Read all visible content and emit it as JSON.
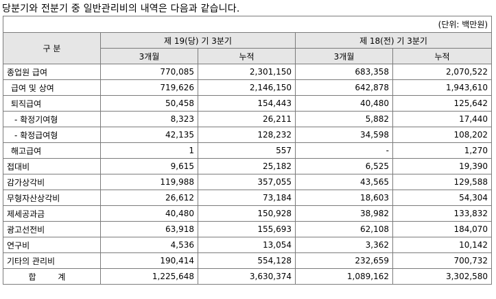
{
  "heading": "당분기와 전분기 중 일반관리비의 내역은 다음과 같습니다.",
  "unit_note": "(단위: 백만원)",
  "header": {
    "category": "구 분",
    "current_period": "제 19(당) 기 3분기",
    "prior_period": "제 18(전) 기 3분기",
    "three_months": "3개월",
    "cumulative": "누적"
  },
  "rows": [
    {
      "label": "종업원 급여",
      "v": [
        "770,085",
        "2,301,150",
        "683,358",
        "2,070,522"
      ]
    },
    {
      "label": "급여 및 상여",
      "v": [
        "719,626",
        "2,146,150",
        "642,878",
        "1,943,610"
      ]
    },
    {
      "label": "퇴직급여",
      "v": [
        "50,458",
        "154,443",
        "40,480",
        "125,642"
      ]
    },
    {
      "label": "- 확정기여형",
      "v": [
        "8,323",
        "26,211",
        "5,882",
        "17,440"
      ]
    },
    {
      "label": "- 확정급여형",
      "v": [
        "42,135",
        "128,232",
        "34,598",
        "108,202"
      ]
    },
    {
      "label": "해고급여",
      "v": [
        "1",
        "557",
        "-",
        "1,270"
      ]
    },
    {
      "label": "접대비",
      "v": [
        "9,615",
        "25,182",
        "6,525",
        "19,390"
      ]
    },
    {
      "label": "감가상각비",
      "v": [
        "119,988",
        "357,055",
        "43,565",
        "129,588"
      ]
    },
    {
      "label": "무형자산상각비",
      "v": [
        "26,612",
        "73,184",
        "18,603",
        "54,304"
      ]
    },
    {
      "label": "제세공과금",
      "v": [
        "40,480",
        "150,928",
        "38,982",
        "133,832"
      ]
    },
    {
      "label": "광고선전비",
      "v": [
        "63,918",
        "155,693",
        "62,108",
        "184,070"
      ]
    },
    {
      "label": "연구비",
      "v": [
        "4,536",
        "13,054",
        "3,362",
        "10,142"
      ]
    },
    {
      "label": "기타의 관리비",
      "v": [
        "190,414",
        "554,128",
        "232,659",
        "700,732"
      ]
    },
    {
      "label": "합 계",
      "v": [
        "1,225,648",
        "3,630,374",
        "1,089,162",
        "3,302,580"
      ]
    }
  ]
}
